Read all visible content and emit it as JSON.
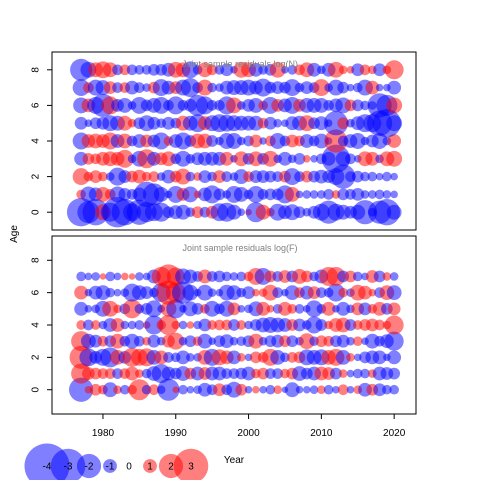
{
  "chart_data": {
    "type": "scatter",
    "subtype": "bubble",
    "xlabel": "Year",
    "ylabel": "Age",
    "x_ticks": [
      1980,
      1990,
      2000,
      2010,
      2020
    ],
    "xlim": [
      1973,
      2023
    ],
    "colors": {
      "positive": "#ff0000",
      "negative": "#0000ff"
    },
    "alpha": 0.5,
    "panels": [
      {
        "title": "Joint sample residuals log(N)",
        "ylim": [
          -1,
          9
        ],
        "y_ticks": [
          0,
          2,
          4,
          6,
          8
        ],
        "ages": [
          0,
          1,
          2,
          3,
          4,
          5,
          6,
          7,
          8
        ],
        "years": [
          1977,
          2020
        ],
        "residuals": [
          [
            -2.4,
            -1.8,
            -2.2,
            1.2,
            -1.5,
            -2.6,
            -2.2,
            -1.4,
            -2.1,
            -1.6,
            -1.4,
            -1.5,
            -0.8,
            -1.0,
            -1.1,
            -0.6,
            0.8,
            -0.7,
            0.9,
            -1.4,
            -1.5,
            -1.1,
            -0.4,
            0.3,
            -1.6,
            1.1,
            0.5,
            -1.3,
            -1.0,
            -1.2,
            -0.8,
            -0.5,
            -0.9,
            -1.3,
            -1.9,
            -1.3,
            -1.1,
            -0.9,
            -1.1,
            -2.0,
            -0.5,
            -1.9,
            -2.2,
            -1.1
          ],
          [
            0.6,
            -1.2,
            -1.0,
            1.1,
            0.7,
            -1.2,
            -0.9,
            -0.7,
            -1.0,
            -2.1,
            -1.8,
            -1.1,
            -0.4,
            -1.3,
            0.9,
            -1.2,
            0.4,
            -1.0,
            -1.4,
            -0.8,
            -0.5,
            -1.3,
            -1.1,
            -0.6,
            -1.3,
            -0.7,
            -0.8,
            -0.8,
            -1.4,
            1.1,
            -0.4,
            -0.5,
            -0.5,
            -0.5,
            -0.7,
            0.5,
            -0.8,
            -0.7,
            -0.9,
            -0.5,
            -0.5,
            -0.6,
            -0.5,
            -0.4
          ],
          [
            1.3,
            0.6,
            0.9,
            0.6,
            -0.5,
            -1.4,
            -0.9,
            0.8,
            1.0,
            0.6,
            0.7,
            -0.5,
            -1.0,
            0.8,
            1.2,
            -0.6,
            0.5,
            -0.9,
            -0.6,
            0.9,
            -0.7,
            -0.5,
            -1.1,
            0.7,
            -0.9,
            -0.9,
            -0.8,
            -0.7,
            0.8,
            -1.3,
            -0.7,
            0.8,
            -0.8,
            -1.0,
            -0.9,
            -1.3,
            -2.0,
            -0.7,
            -0.8,
            -0.6,
            -0.6,
            -0.4,
            -0.6,
            -0.4
          ],
          [
            -1.0,
            0.8,
            0.7,
            1.0,
            1.1,
            1.0,
            1.4,
            -0.5,
            -1.2,
            1.5,
            -1.0,
            0.9,
            1.1,
            -0.7,
            -1.2,
            -0.6,
            -0.9,
            -1.0,
            -1.0,
            -1.0,
            1.0,
            -0.4,
            1.1,
            -0.8,
            1.1,
            -0.8,
            1.2,
            -0.5,
            -1.0,
            -0.5,
            -0.8,
            0.4,
            -0.4,
            -0.7,
            -1.0,
            -2.4,
            -1.1,
            -0.7,
            -0.4,
            1.1,
            1.0,
            -0.5,
            1.1,
            1.2
          ],
          [
            -1.3,
            1.0,
            1.1,
            1.0,
            1.3,
            -1.0,
            1.1,
            -0.7,
            -1.0,
            0.9,
            -0.9,
            -1.3,
            0.6,
            -1.0,
            -1.3,
            -0.8,
            1.1,
            1.1,
            -0.8,
            -0.5,
            -1.2,
            -1.2,
            -0.5,
            -0.7,
            0.9,
            -0.4,
            0.7,
            -1.2,
            -0.7,
            0.9,
            0.7,
            -1.0,
            -0.7,
            -1.1,
            -0.4,
            1.9,
            -0.7,
            -1.0,
            -1.2,
            -0.5,
            -0.9,
            -1.2,
            -0.5,
            1.0
          ],
          [
            -0.9,
            -0.4,
            -0.8,
            -0.9,
            -1.2,
            -1.1,
            1.1,
            0.5,
            -0.8,
            -1.2,
            -0.9,
            -0.6,
            -0.9,
            -0.7,
            1.1,
            -1.1,
            -1.4,
            1.0,
            -1.2,
            -1.4,
            -1.3,
            -1.2,
            -1.1,
            -1.1,
            -1.1,
            0.7,
            -0.9,
            -0.5,
            -0.4,
            -1.0,
            -1.1,
            1.2,
            -0.8,
            -1.0,
            -0.4,
            -2.0,
            0.8,
            -0.5,
            -1.0,
            -1.4,
            -1.4,
            -2.1,
            -2.4,
            -1.2
          ],
          [
            -1.2,
            1.0,
            -1.3,
            -1.9,
            1.4,
            -0.9,
            -1.1,
            -0.5,
            -1.3,
            -0.8,
            -1.1,
            -1.3,
            -0.7,
            -1.4,
            -0.7,
            -0.9,
            -1.7,
            -1.4,
            -0.7,
            -0.7,
            -1.4,
            1.2,
            -0.5,
            -0.9,
            -1.1,
            0.6,
            -1.3,
            0.9,
            -1.0,
            -1.3,
            0.9,
            -1.1,
            -1.1,
            -1.1,
            -0.7,
            -1.0,
            -1.2,
            0.8,
            -0.8,
            -0.6,
            -0.5,
            -2.0,
            -1.7,
            1.2
          ],
          [
            -1.3,
            0.7,
            -1.2,
            -1.1,
            0.9,
            -0.7,
            0.7,
            -1.0,
            -0.7,
            -0.5,
            0.8,
            -1.3,
            -1.0,
            0.9,
            -1.2,
            -1.5,
            -0.7,
            1.2,
            -0.6,
            -0.5,
            -1.0,
            -1.1,
            -1.1,
            -1.2,
            -1.0,
            -1.4,
            -0.8,
            -0.9,
            -0.8,
            -1.3,
            -0.6,
            -0.9,
            -0.7,
            1.3,
            -0.5,
            -1.2,
            -0.8,
            -0.4,
            -0.6,
            -1.2,
            1.0,
            -0.4,
            -0.4,
            -1.0
          ],
          [
            -1.8,
            -1.2,
            1.1,
            1.3,
            1.1,
            -0.7,
            0.7,
            -0.7,
            -0.6,
            -0.6,
            -0.8,
            -0.8,
            -1.0,
            1.2,
            1.1,
            -1.3,
            -0.6,
            1.1,
            0.7,
            -0.6,
            -0.9,
            -0.4,
            1.2,
            1.1,
            -1.0,
            -0.6,
            -0.8,
            1.2,
            -0.4,
            -0.6,
            0.7,
            1.1,
            -1.0,
            -0.5,
            -1.0,
            1.2,
            0.5,
            0.4,
            -0.9,
            0.7,
            0.5,
            -0.9,
            0.5,
            1.5
          ]
        ]
      },
      {
        "title": "Joint sample residuals log(F)",
        "ylim": [
          -1.5,
          9.5
        ],
        "y_ticks": [
          0,
          2,
          4,
          6,
          8
        ],
        "ages": [
          0,
          1,
          2,
          3,
          4,
          5,
          6,
          7
        ],
        "years": [
          1977,
          2020
        ],
        "residuals": [
          [
            -2.0,
            0.4,
            0.8,
            0.6,
            -1.1,
            0.5,
            -0.6,
            0.6,
            1.7,
            -0.6,
            0.7,
            -0.5,
            -1.8,
            0.3,
            -0.6,
            -0.4,
            -0.5,
            -1.0,
            -0.7,
            0.9,
            -0.7,
            -1.2,
            0.8,
            -0.4,
            0.4,
            -0.4,
            -0.6,
            0.5,
            -0.3,
            -1.1,
            -0.4,
            -0.4,
            -0.5,
            0.5,
            -0.6,
            -0.4,
            0.7,
            -0.4,
            0.5,
            -1.0,
            0.8,
            -0.9,
            -0.6,
            -0.6
          ],
          [
            1.6,
            0.9,
            0.8,
            0.7,
            0.7,
            -0.7,
            0.7,
            1.0,
            0.5,
            -0.6,
            -1.1,
            -1.5,
            -1.0,
            -0.8,
            -1.1,
            0.8,
            -1.0,
            0.9,
            -1.0,
            -1.0,
            -0.7,
            -0.7,
            -0.8,
            -1.0,
            0.6,
            0.8,
            -0.7,
            -0.7,
            0.6,
            0.8,
            -1.1,
            -0.8,
            -1.0,
            1.0,
            0.9,
            -0.8,
            0.5,
            -0.4,
            -0.6,
            -0.6,
            0.5,
            -1.0,
            -0.9,
            -0.8
          ],
          [
            1.9,
            -1.4,
            -0.9,
            -1.3,
            -1.6,
            1.1,
            -0.9,
            1.5,
            1.3,
            1.4,
            -1.1,
            1.0,
            -0.7,
            -0.6,
            -1.0,
            -0.5,
            -0.5,
            1.1,
            -1.3,
            1.2,
            1.0,
            -1.0,
            0.5,
            -0.4,
            0.8,
            0.7,
            1.3,
            -1.1,
            -0.6,
            0.7,
            0.8,
            -1.2,
            -1.1,
            -1.2,
            1.1,
            1.3,
            -1.1,
            0.5,
            -0.4,
            -0.8,
            -1.0,
            -1.0,
            -0.4,
            -1.0
          ],
          [
            1.6,
            -1.1,
            -0.9,
            0.7,
            -0.8,
            1.1,
            -0.7,
            -1.1,
            -0.7,
            0.5,
            -0.9,
            -0.5,
            0.9,
            1.3,
            -0.5,
            -0.8,
            0.6,
            -1.1,
            -0.4,
            -0.8,
            -1.0,
            -0.5,
            -0.6,
            -0.8,
            1.1,
            -0.5,
            -0.8,
            -0.9,
            0.8,
            -0.8,
            -0.5,
            1.2,
            -0.6,
            0.8,
            0.7,
            -0.8,
            -0.9,
            -0.5,
            0.6,
            -0.4,
            -1.1,
            -0.7,
            -1.0,
            -1.5
          ],
          [
            0.6,
            -0.7,
            0.6,
            -0.5,
            -1.0,
            1.0,
            -0.5,
            -0.5,
            -0.6,
            0.4,
            -1.5,
            0.6,
            1.6,
            0.5,
            -0.5,
            0.4,
            -0.5,
            -0.9,
            0.6,
            0.7,
            0.7,
            -0.8,
            0.6,
            -0.5,
            -0.8,
            -1.1,
            -1.2,
            -1.1,
            -1.0,
            0.8,
            -0.9,
            -0.6,
            -1.3,
            -0.8,
            0.5,
            1.0,
            1.1,
            -0.8,
            0.6,
            0.8,
            0.9,
            0.7,
            0.5,
            1.5
          ],
          [
            -1.0,
            -0.4,
            -0.5,
            -1.2,
            1.2,
            0.5,
            -0.7,
            1.5,
            -0.6,
            -0.8,
            -1.3,
            -0.4,
            1.2,
            -1.5,
            -0.4,
            -1.1,
            -0.8,
            0.6,
            -1.2,
            -0.7,
            -1.2,
            0.9,
            -0.4,
            -0.5,
            -1.1,
            1.0,
            0.4,
            -0.6,
            1.0,
            0.6,
            -0.6,
            -0.4,
            -1.3,
            -0.6,
            1.0,
            -0.4,
            -1.0,
            -0.5,
            0.9,
            -0.9,
            0.6,
            1.0,
            -0.8,
            0.9
          ],
          [
            1.0,
            -0.4,
            -1.0,
            -1.1,
            -0.6,
            -0.4,
            -0.5,
            -1.4,
            -1.1,
            -0.9,
            -0.6,
            -1.5,
            2.0,
            1.6,
            -1.8,
            -1.2,
            -0.4,
            -1.2,
            -0.5,
            -0.4,
            -1.2,
            -1.1,
            -0.6,
            -0.9,
            0.4,
            0.5,
            1.2,
            -0.7,
            -0.4,
            -1.1,
            0.7,
            -1.0,
            0.9,
            -0.7,
            -0.6,
            -1.4,
            0.6,
            -0.5,
            1.2,
            1.0,
            0.4,
            -0.7,
            1.1,
            -1.1
          ],
          [
            -0.6,
            -0.4,
            -0.5,
            0.3,
            -0.6,
            -0.4,
            0.4,
            0.3,
            -0.5,
            -0.4,
            -1.0,
            1.5,
            2.0,
            1.4,
            -1.2,
            -1.0,
            -0.7,
            1.0,
            -0.7,
            -0.8,
            -0.6,
            -0.5,
            -0.6,
            0.6,
            1.3,
            -1.3,
            0.8,
            -0.7,
            0.9,
            -0.8,
            1.1,
            0.8,
            -0.6,
            -1.0,
            1.5,
            1.5,
            -0.8,
            0.8,
            -0.6,
            -0.4,
            0.9,
            -0.8,
            0.5,
            -0.5
          ]
        ]
      }
    ],
    "legend": {
      "position": "bottom-left",
      "values": [
        -4,
        -3,
        -2,
        -1,
        0,
        1,
        2,
        3
      ],
      "labels": [
        "-4",
        "-3",
        "-2",
        "-1",
        "0",
        "1",
        "2",
        "3"
      ]
    }
  }
}
